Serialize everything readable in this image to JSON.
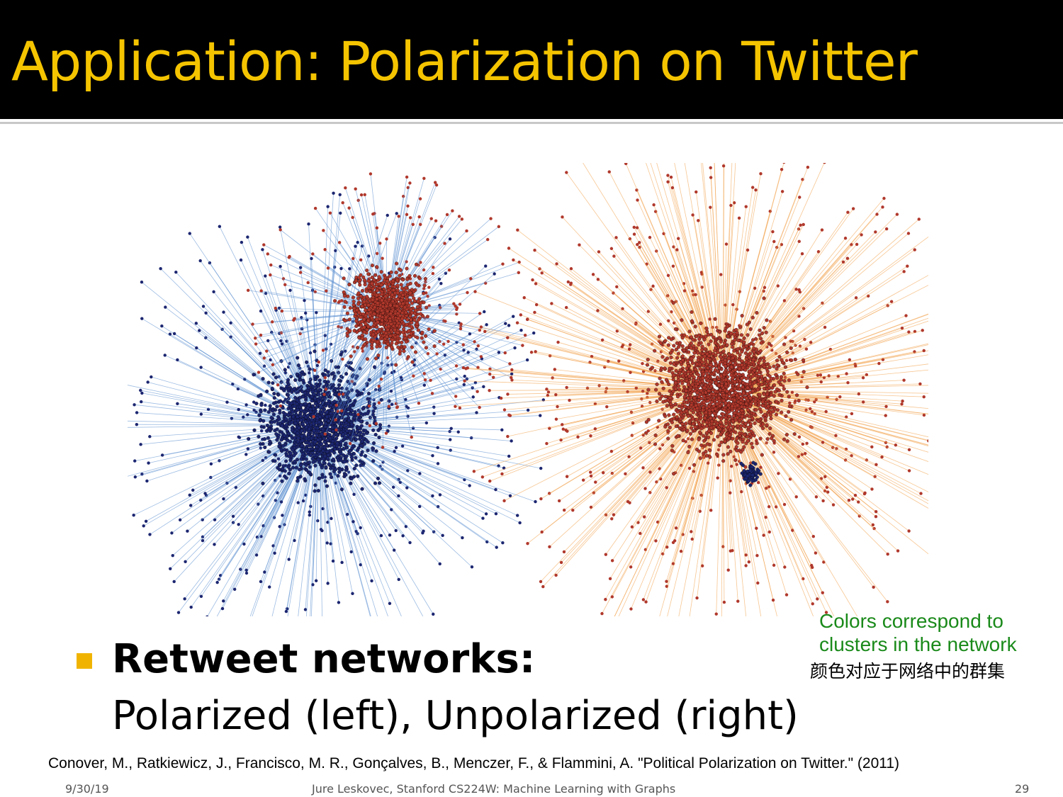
{
  "slide": {
    "title": "Application: Polarization on Twitter",
    "bullet_heading": "Retweet networks:",
    "bullet_text": "Polarized (left), Unpolarized (right)",
    "note_en_line1": "Colors correspond to",
    "note_en_line2": "clusters in the network",
    "note_cn": "颜色对应于网络中的群集",
    "citation": "Conover, M., Ratkiewicz, J., Francisco, M. R., Gonçalves, B., Menczer, F., & Flammini, A. \"Political Polarization on Twitter.\" (2011)",
    "footer_date": "9/30/19",
    "footer_course": "Jure Leskovec, Stanford CS224W: Machine Learning with Graphs",
    "footer_page": "29"
  },
  "colors": {
    "title": "#f5c400",
    "bullet": "#f0b400",
    "note": "#1a8a1a",
    "cluster_blue": "#1c2670",
    "edge_blue": "#5b8fd0",
    "cluster_red": "#b0382c",
    "edge_orange": "#f2a04a"
  },
  "figures": [
    {
      "label": "polarized-network",
      "clusters": [
        "blue",
        "red"
      ]
    },
    {
      "label": "unpolarized-network",
      "clusters": [
        "red",
        "blue"
      ]
    }
  ]
}
